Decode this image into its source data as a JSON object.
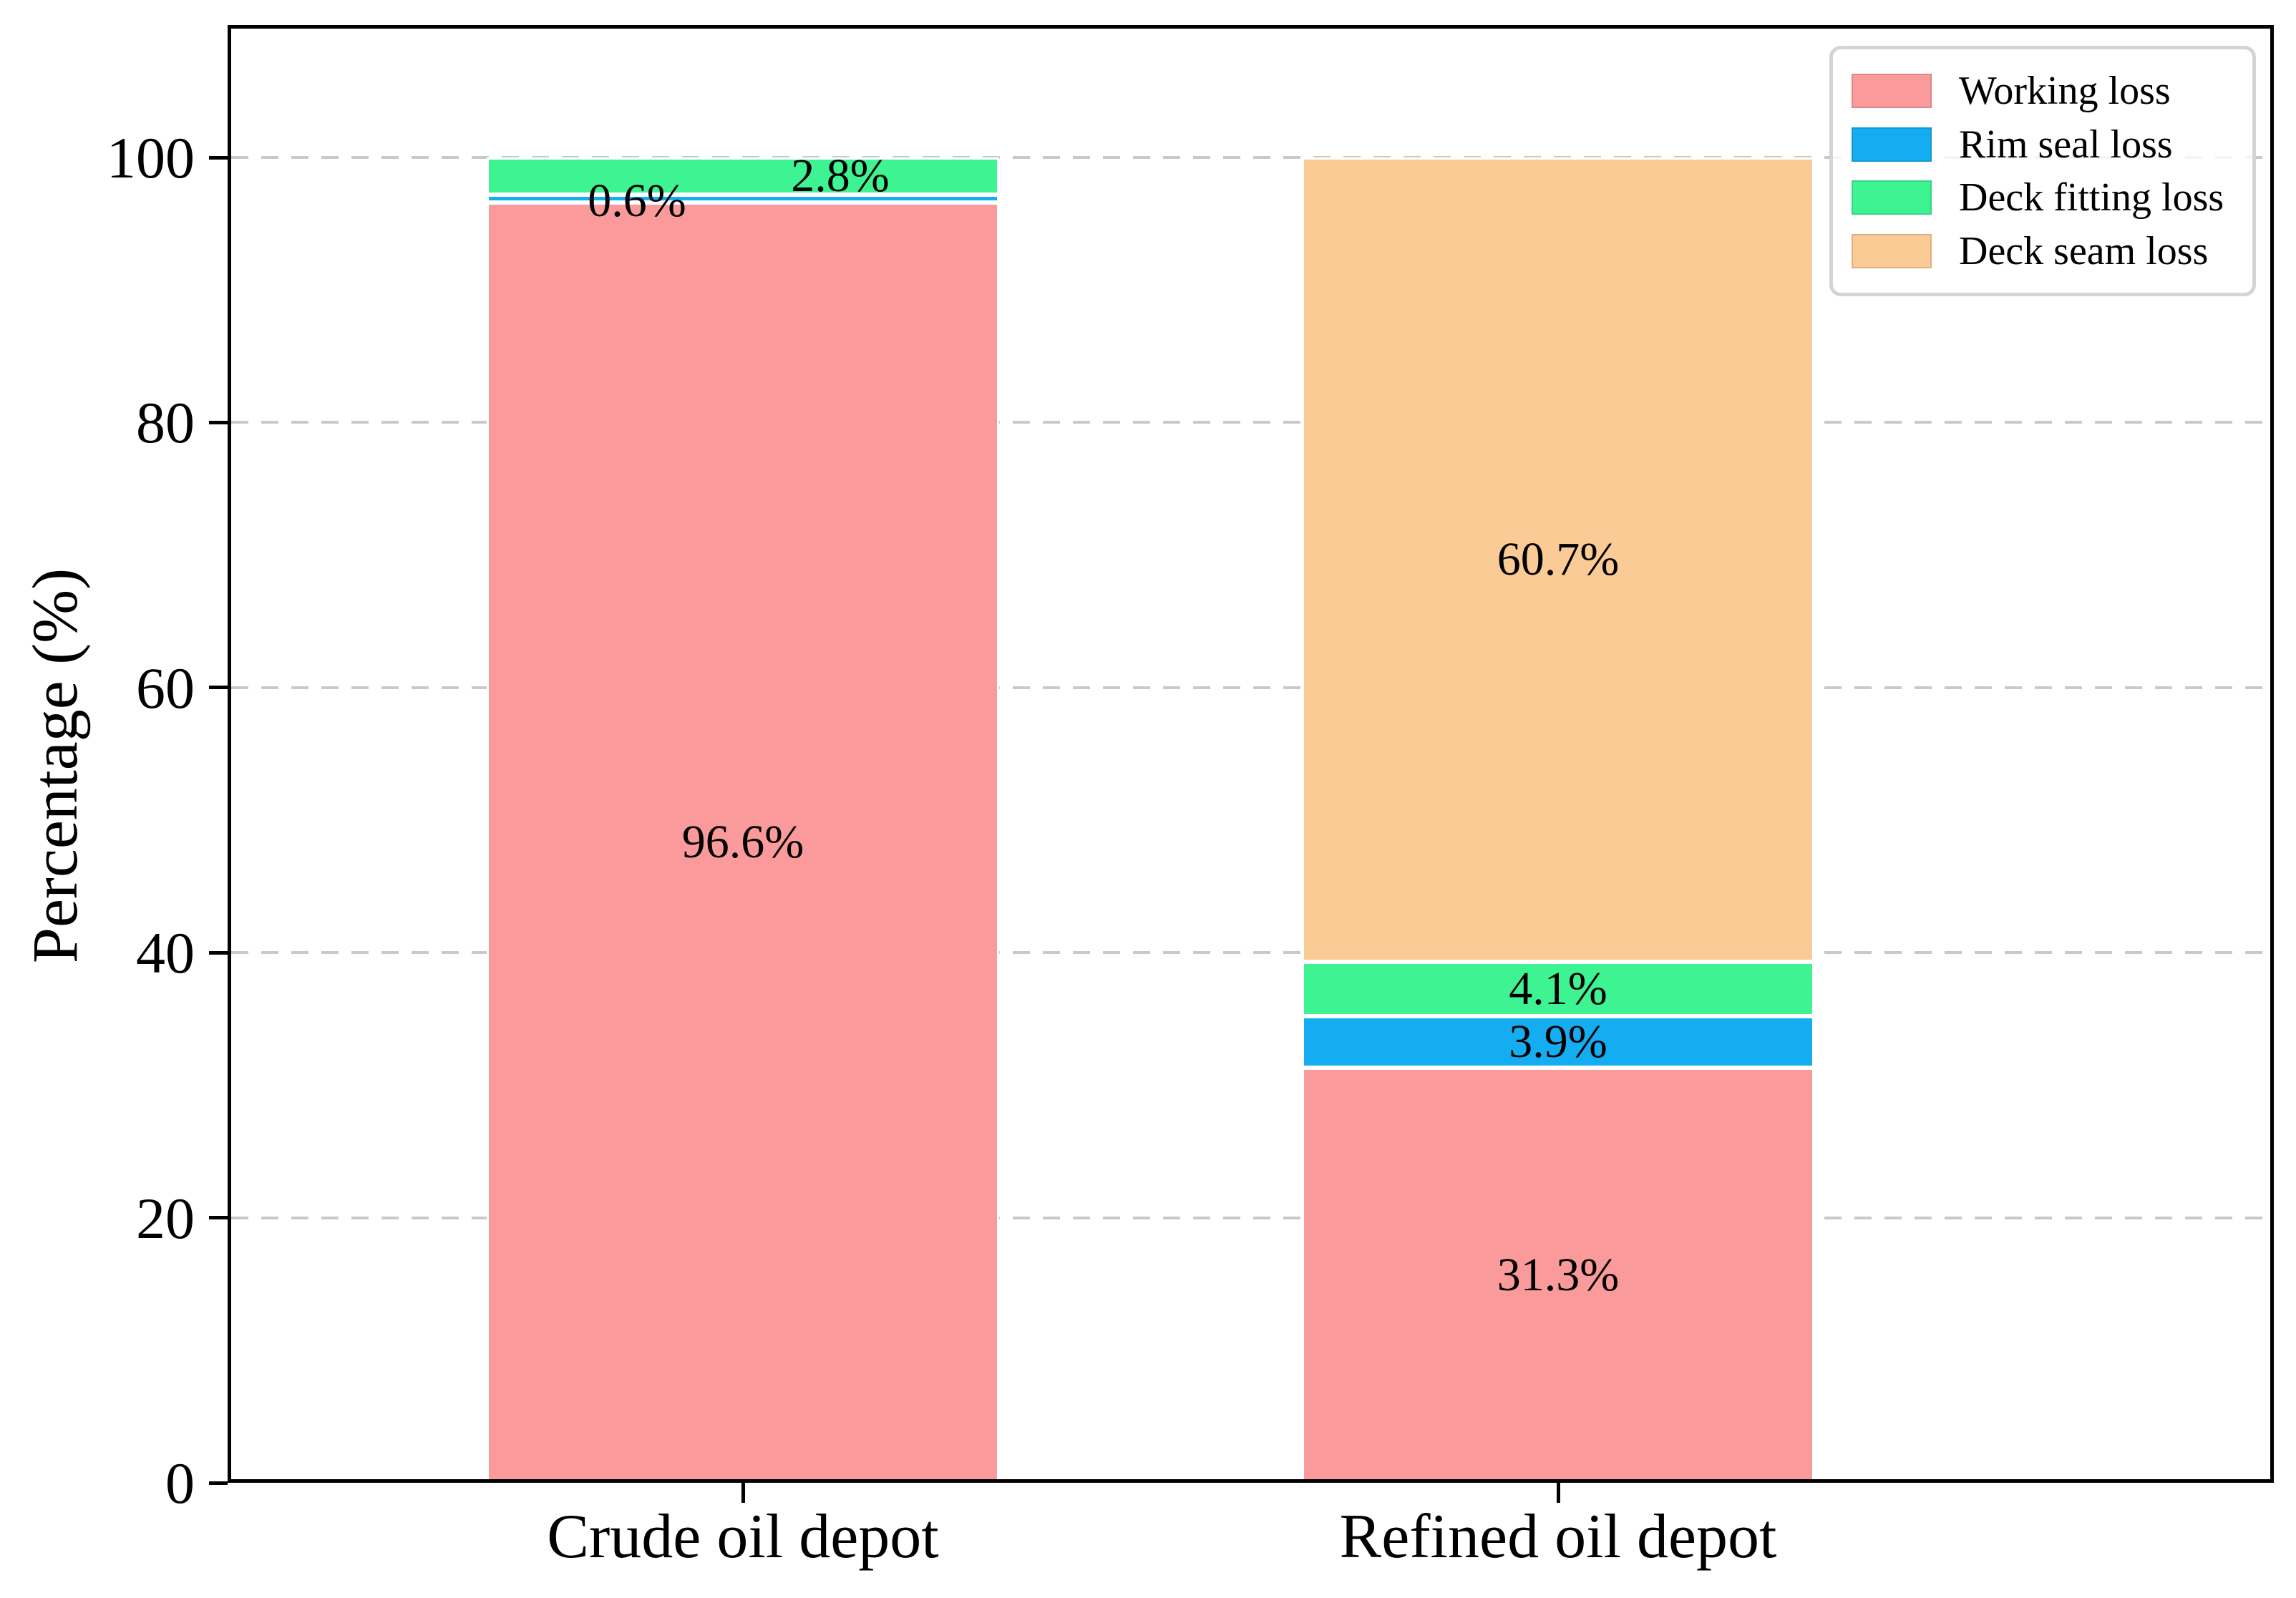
{
  "figure": {
    "background": "#ffffff",
    "text_color": "#000000",
    "spine_color": "#000000"
  },
  "chart_data": {
    "type": "bar",
    "stacked": true,
    "title": "",
    "xlabel": "",
    "ylabel": "Percentage (%)",
    "ylim": [
      0,
      110
    ],
    "yticks": [
      0,
      20,
      40,
      60,
      80,
      100
    ],
    "ytick_labels": [
      "0",
      "20",
      "40",
      "60",
      "80",
      "100"
    ],
    "categories": [
      "Crude oil depot",
      "Refined oil depot"
    ],
    "series": [
      {
        "name": "Working loss",
        "color": "#FA9A9A",
        "values": [
          96.6,
          31.3
        ],
        "value_labels": [
          "96.6%",
          "31.3%"
        ]
      },
      {
        "name": "Rim seal loss",
        "color": "#14ADF2",
        "values": [
          0.6,
          3.9
        ],
        "value_labels": [
          "0.6%",
          "3.9%"
        ]
      },
      {
        "name": "Deck fitting loss",
        "color": "#3EF492",
        "values": [
          2.8,
          4.1
        ],
        "value_labels": [
          "2.8%",
          "4.1%"
        ]
      },
      {
        "name": "Deck seam loss",
        "color": "#FBCB96",
        "values": [
          0,
          60.7
        ],
        "value_labels": [
          "",
          "60.7%"
        ]
      }
    ],
    "grid": {
      "axis": "y",
      "style": "dashed",
      "color": "#c9c9c9",
      "on_ticks": [
        20,
        40,
        60,
        80,
        100
      ]
    },
    "legend": {
      "position": "upper right",
      "entries": [
        "Working loss",
        "Rim seal loss",
        "Deck fitting loss",
        "Deck seam loss"
      ]
    },
    "bar_edge_color": "#ffffff"
  }
}
